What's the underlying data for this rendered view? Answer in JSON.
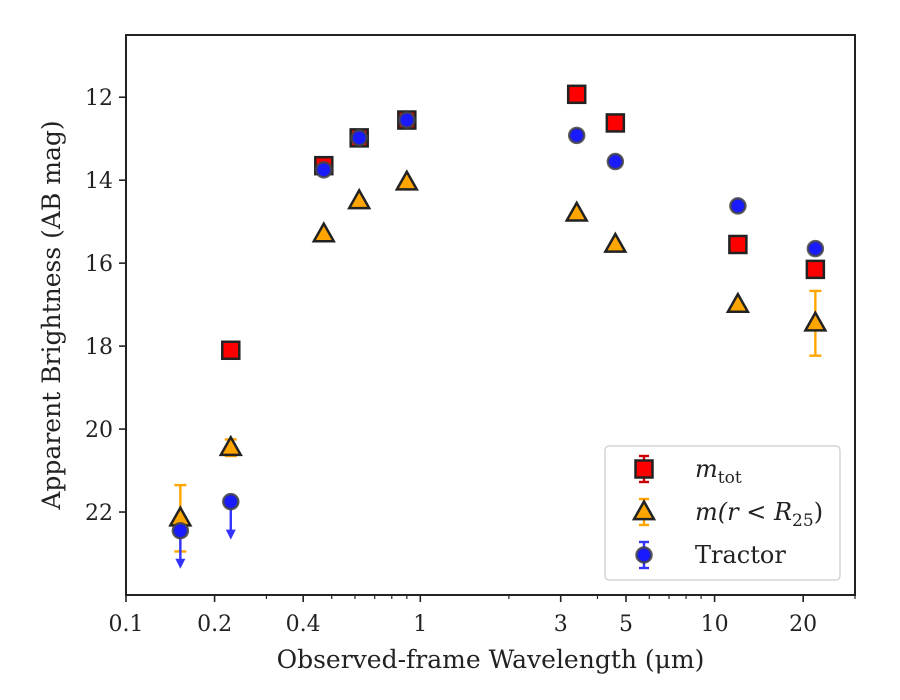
{
  "chart_data": {
    "type": "scatter",
    "title": "",
    "xlabel": "Observed-frame Wavelength (μm)",
    "ylabel": "Apparent Brightness (AB mag)",
    "xscale": "log",
    "xlim": [
      0.1,
      30
    ],
    "ylim": [
      24,
      10.5
    ],
    "y_inverted": true,
    "x_ticks": [
      {
        "value": 0.1,
        "label": "0.1"
      },
      {
        "value": 0.2,
        "label": "0.2"
      },
      {
        "value": 0.4,
        "label": "0.4"
      },
      {
        "value": 1,
        "label": "1"
      },
      {
        "value": 3,
        "label": "3"
      },
      {
        "value": 5,
        "label": "5"
      },
      {
        "value": 10,
        "label": "10"
      },
      {
        "value": 20,
        "label": "20"
      }
    ],
    "y_ticks": [
      {
        "value": 12,
        "label": "12"
      },
      {
        "value": 14,
        "label": "14"
      },
      {
        "value": 16,
        "label": "16"
      },
      {
        "value": 18,
        "label": "18"
      },
      {
        "value": 20,
        "label": "20"
      },
      {
        "value": 22,
        "label": "22"
      }
    ],
    "grid": false,
    "legend_position": "bottom-right",
    "series": [
      {
        "key": "mtot",
        "legend_main": "m",
        "legend_sub": "tot",
        "legend_tail": "",
        "marker": "square",
        "color": "#ff0000",
        "edge_color": "#222222",
        "errorbar_color": "#cc0000",
        "points": [
          {
            "x": 0.227,
            "y": 18.1,
            "yerr": 0.05
          },
          {
            "x": 0.47,
            "y": 13.65,
            "yerr": 0.05
          },
          {
            "x": 0.62,
            "y": 12.98,
            "yerr": 0.05
          },
          {
            "x": 0.9,
            "y": 12.55,
            "yerr": 0.05
          },
          {
            "x": 3.4,
            "y": 11.93,
            "yerr": 0.05
          },
          {
            "x": 4.6,
            "y": 12.62,
            "yerr": 0.05
          },
          {
            "x": 12.0,
            "y": 15.55,
            "yerr": 0.05
          },
          {
            "x": 22.0,
            "y": 16.15,
            "yerr": 0.05
          }
        ]
      },
      {
        "key": "mr25",
        "legend_main": "m",
        "legend_sub": "25",
        "legend_tail": ")",
        "legend_expr": "(r < R",
        "marker": "triangle",
        "color": "#ffa500",
        "edge_color": "#222222",
        "errorbar_color": "#ffa500",
        "points": [
          {
            "x": 0.153,
            "y": 22.15,
            "yerr": 0.8
          },
          {
            "x": 0.227,
            "y": 20.45,
            "yerr": 0.2
          },
          {
            "x": 0.47,
            "y": 15.3,
            "yerr": 0.05
          },
          {
            "x": 0.62,
            "y": 14.5,
            "yerr": 0.05
          },
          {
            "x": 0.9,
            "y": 14.05,
            "yerr": 0.05
          },
          {
            "x": 3.4,
            "y": 14.8,
            "yerr": 0.05
          },
          {
            "x": 4.6,
            "y": 15.55,
            "yerr": 0.05
          },
          {
            "x": 12.0,
            "y": 17.0,
            "yerr": 0.1
          },
          {
            "x": 22.0,
            "y": 17.45,
            "yerr": 0.78
          }
        ]
      },
      {
        "key": "tractor",
        "legend_main": "Tractor",
        "legend_sub": "",
        "legend_tail": "",
        "marker": "circle",
        "color": "#1a1aff",
        "edge_color": "#444444",
        "errorbar_color": "#3333ff",
        "points": [
          {
            "x": 0.153,
            "y": 22.45,
            "upper_limit": true
          },
          {
            "x": 0.227,
            "y": 21.75,
            "upper_limit": true
          },
          {
            "x": 0.47,
            "y": 13.75
          },
          {
            "x": 0.62,
            "y": 12.98
          },
          {
            "x": 0.9,
            "y": 12.55
          },
          {
            "x": 3.4,
            "y": 12.92
          },
          {
            "x": 4.6,
            "y": 13.55
          },
          {
            "x": 12.0,
            "y": 14.62
          },
          {
            "x": 22.0,
            "y": 15.65
          }
        ]
      }
    ]
  }
}
